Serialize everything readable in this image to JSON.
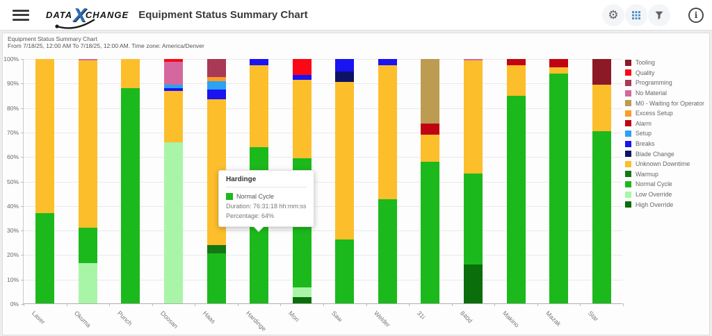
{
  "header": {
    "logo": {
      "part1": "DATA",
      "x": "X",
      "part2": "CHANGE"
    },
    "title": "Equipment Status Summary Chart",
    "icons": [
      {
        "name": "gear-icon"
      },
      {
        "name": "data-grid-icon"
      },
      {
        "name": "filter-funnel-icon"
      },
      {
        "name": "info-icon"
      }
    ],
    "info_glyph": "i"
  },
  "chart": {
    "subtitle_line1": "Equipment Status Summary Chart",
    "subtitle_line2": "From 7/18/25, 12:00 AM To 7/18/25, 12:00 AM. Time zone: America/Denver"
  },
  "chart_data": {
    "type": "bar",
    "stacked": true,
    "title": "Equipment Status Summary Chart",
    "ylim": [
      0,
      100
    ],
    "ytick_step": 10,
    "ytick_suffix": "%",
    "grid": true,
    "legend_position": "right",
    "categories": [
      "Laser",
      "Okuma",
      "Punch",
      "Doosan",
      "Haas",
      "Hardinge",
      "Mori",
      "Saw",
      "Welder",
      "31i",
      "840d",
      "Makino",
      "Mazak",
      "Star"
    ],
    "series": [
      {
        "name": "High Override",
        "color": "#0A6E0A",
        "values": [
          0,
          0,
          0,
          0,
          0,
          0,
          2.5,
          0,
          0,
          0,
          16,
          0,
          0,
          0
        ]
      },
      {
        "name": "Low Override",
        "color": "#A8F5A8",
        "values": [
          0,
          16.5,
          0,
          66,
          0,
          0,
          4,
          0,
          0,
          0,
          0,
          0,
          0,
          0
        ]
      },
      {
        "name": "Normal Cycle",
        "color": "#1CB91C",
        "values": [
          37,
          14.5,
          88,
          0,
          20.5,
          64,
          53,
          26,
          42.5,
          58,
          37,
          85,
          94,
          70.5
        ]
      },
      {
        "name": "Warmup",
        "color": "#127812",
        "values": [
          0,
          0,
          0,
          0,
          3.5,
          0,
          0,
          0,
          0,
          0,
          0,
          0,
          0,
          0
        ]
      },
      {
        "name": "Unknown Downtime",
        "color": "#FDBE2C",
        "values": [
          63,
          68.5,
          12,
          21,
          59.5,
          33.5,
          32,
          64.5,
          55,
          11,
          46.5,
          12.5,
          2.5,
          19
        ]
      },
      {
        "name": "Blade Change",
        "color": "#0E1266",
        "values": [
          0,
          0,
          0,
          0,
          0,
          0,
          0,
          4.5,
          0,
          0,
          0,
          0,
          0,
          0
        ]
      },
      {
        "name": "Breaks",
        "color": "#1A13F2",
        "values": [
          0,
          0,
          0,
          1,
          4,
          2.5,
          2,
          5,
          2.5,
          0,
          0,
          0,
          0,
          0
        ]
      },
      {
        "name": "Setup",
        "color": "#2BA2F2",
        "values": [
          0,
          0,
          0,
          1.5,
          3.5,
          0,
          0,
          0,
          0,
          0,
          0,
          0,
          0,
          0
        ]
      },
      {
        "name": "Alarm",
        "color": "#C00512",
        "values": [
          0,
          0,
          0,
          0,
          0,
          0,
          0,
          0,
          0,
          4.5,
          0,
          2.5,
          3.5,
          0
        ]
      },
      {
        "name": "Excess Setup",
        "color": "#FA9B2A",
        "values": [
          0,
          0,
          0,
          0,
          1.5,
          0,
          0,
          0,
          0,
          0,
          0,
          0,
          0,
          0
        ]
      },
      {
        "name": "M0 - Waiting for Operator",
        "color": "#BB9C50",
        "values": [
          0,
          0,
          0,
          0,
          0,
          0,
          0,
          0,
          0,
          26.5,
          0,
          0,
          0,
          0
        ]
      },
      {
        "name": "No Material",
        "color": "#D4679E",
        "values": [
          0,
          0.5,
          0,
          9.5,
          0,
          0,
          0,
          0,
          0,
          0,
          0.5,
          0,
          0,
          0
        ]
      },
      {
        "name": "Programming",
        "color": "#A83A55",
        "values": [
          0,
          0,
          0,
          0,
          7.5,
          0,
          0,
          0,
          0,
          0,
          0,
          0,
          0,
          0
        ]
      },
      {
        "name": "Quality",
        "color": "#FB0716",
        "values": [
          0,
          0,
          0,
          1,
          0,
          0,
          6.5,
          0,
          0,
          0,
          0,
          0,
          0,
          0
        ]
      },
      {
        "name": "Tooling",
        "color": "#8C1A26",
        "values": [
          0,
          0,
          0,
          0,
          0,
          0,
          0,
          0,
          0,
          0,
          0,
          0,
          0,
          10.5
        ]
      }
    ],
    "highlight": {
      "category": "Hardinge",
      "series": "Normal Cycle"
    },
    "tooltip": {
      "title": "Hardinge",
      "series_label": "Normal Cycle",
      "swatch_color": "#1CB91C",
      "duration": "Duration: 76:31:18 hh:mm:ss",
      "percentage": "Percentage: 64%"
    }
  }
}
